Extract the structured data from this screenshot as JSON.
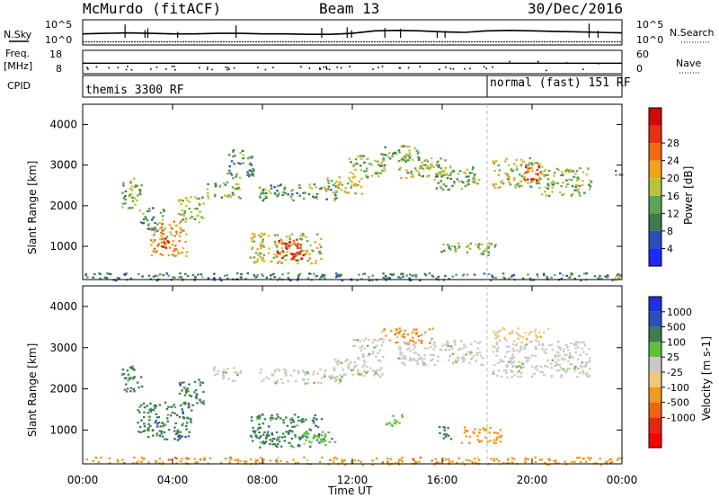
{
  "header": {
    "site": "McMurdo (fitACF)",
    "beam": "Beam 13",
    "date": "30/Dec/2016"
  },
  "colors": {
    "power_scale": [
      "#1a2cff",
      "#2a4fb8",
      "#3e7a4a",
      "#5aa55a",
      "#b6c43a",
      "#f0a21a",
      "#f06a14",
      "#e63214",
      "#d20a0a"
    ],
    "velocity_scale": [
      "#2030e0",
      "#2a4fb8",
      "#3e7d52",
      "#5cc23a",
      "#c8c8c8",
      "#f0c878",
      "#f09a1e",
      "#ee6414",
      "#e02a10",
      "#ff0000"
    ]
  },
  "chart_data": [
    {
      "type": "line",
      "name": "noise-panel",
      "left_labels": [
        "N.Sky",
        "10^5",
        "10^0"
      ],
      "right_labels": [
        "N.Search",
        "10^5",
        "10^0"
      ],
      "left_ticks": [
        "10^5",
        "10^0"
      ],
      "right_ticks": [
        "10^5",
        "10^0"
      ],
      "x": [
        0,
        1,
        2,
        3,
        4,
        5,
        6,
        7,
        8,
        9,
        10,
        11,
        12,
        13,
        14,
        15,
        16,
        17,
        18,
        19,
        20,
        21,
        22,
        23,
        24
      ],
      "series": [
        {
          "values": [
            2.2,
            2.3,
            2.4,
            2.3,
            2.2,
            2.2,
            2.3,
            2.3,
            2.2,
            2.2,
            2.1,
            2.1,
            2.3,
            2.8,
            2.9,
            2.8,
            2.6,
            2.5,
            2.8,
            2.9,
            2.8,
            2.7,
            2.6,
            2.5,
            2.4
          ]
        },
        {
          "values": [
            0.6,
            0.6,
            0.6,
            0.6,
            0.6,
            0.6,
            0.6,
            0.6,
            0.6,
            0.6,
            0.6,
            0.6,
            0.6,
            0.6,
            0.6,
            0.6,
            0.6,
            0.6,
            0.6,
            0.6,
            0.6,
            0.6,
            0.6,
            0.6,
            0.6
          ]
        }
      ],
      "ylim": [
        0,
        5
      ]
    },
    {
      "type": "scatter",
      "name": "frequency-panel",
      "left_labels": [
        "Freq.",
        "[MHz]",
        "CPID"
      ],
      "right_labels": [
        "Nave"
      ],
      "left_ticks": [
        "18",
        "8"
      ],
      "right_ticks": [
        "60",
        "0"
      ],
      "ylim": [
        8,
        18
      ],
      "freq_mhz": 12.5,
      "nave_fast_from_hour": 18
    },
    {
      "type": "table",
      "name": "cpid-bar",
      "segments": [
        {
          "from_hour": 0,
          "label": "themis 3300 RF"
        },
        {
          "from_hour": 18,
          "label": "normal (fast) 151 RF"
        }
      ]
    },
    {
      "type": "heatmap",
      "name": "power-panel",
      "ylabel": "Slant Range [km]",
      "yticks": [
        "1000",
        "2000",
        "3000",
        "4000"
      ],
      "ylim": [
        180,
        4500
      ],
      "xlim": [
        0,
        24
      ],
      "colorbar_label": "Power [dB]",
      "colorbar_ticks": [
        "4",
        "8",
        "12",
        "16",
        "20",
        "24",
        "28"
      ],
      "zlim": [
        0,
        30
      ],
      "regions": [
        {
          "t0": 1.7,
          "t1": 2.6,
          "r0": 1950,
          "r1": 2600,
          "v": 12
        },
        {
          "t0": 2.0,
          "t1": 2.4,
          "r0": 2400,
          "r1": 2700,
          "v": 17
        },
        {
          "t0": 2.5,
          "t1": 3.6,
          "r0": 1400,
          "r1": 2000,
          "v": 10
        },
        {
          "t0": 3.0,
          "t1": 4.6,
          "r0": 780,
          "r1": 1650,
          "v": 18
        },
        {
          "t0": 3.4,
          "t1": 4.0,
          "r0": 950,
          "r1": 1350,
          "v": 24
        },
        {
          "t0": 4.2,
          "t1": 5.4,
          "r0": 1600,
          "r1": 2250,
          "v": 14
        },
        {
          "t0": 5.5,
          "t1": 7.0,
          "r0": 2200,
          "r1": 2600,
          "v": 12
        },
        {
          "t0": 6.4,
          "t1": 7.6,
          "r0": 2700,
          "r1": 3400,
          "v": 10
        },
        {
          "t0": 7.4,
          "t1": 10.6,
          "r0": 600,
          "r1": 1350,
          "v": 16
        },
        {
          "t0": 8.6,
          "t1": 9.8,
          "r0": 700,
          "r1": 1200,
          "v": 25
        },
        {
          "t0": 9.2,
          "t1": 9.9,
          "r0": 620,
          "r1": 850,
          "v": 28
        },
        {
          "t0": 7.8,
          "t1": 11.4,
          "r0": 2150,
          "r1": 2550,
          "v": 11
        },
        {
          "t0": 10.8,
          "t1": 12.4,
          "r0": 2300,
          "r1": 2750,
          "v": 15
        },
        {
          "t0": 11.8,
          "t1": 13.4,
          "r0": 2700,
          "r1": 3300,
          "v": 13
        },
        {
          "t0": 13.2,
          "t1": 15.0,
          "r0": 3100,
          "r1": 3500,
          "v": 12
        },
        {
          "t0": 14.0,
          "t1": 16.2,
          "r0": 2700,
          "r1": 3200,
          "v": 14
        },
        {
          "t0": 15.6,
          "t1": 17.6,
          "r0": 2400,
          "r1": 3000,
          "v": 12
        },
        {
          "t0": 15.8,
          "t1": 18.4,
          "r0": 800,
          "r1": 1100,
          "v": 13
        },
        {
          "t0": 18.2,
          "t1": 20.4,
          "r0": 2450,
          "r1": 3200,
          "v": 15
        },
        {
          "t0": 19.6,
          "t1": 20.4,
          "r0": 2600,
          "r1": 3000,
          "v": 24
        },
        {
          "t0": 20.4,
          "t1": 22.6,
          "r0": 2250,
          "r1": 2950,
          "v": 13
        },
        {
          "t0": 23.6,
          "t1": 24.0,
          "r0": 2750,
          "r1": 2950,
          "v": 10
        },
        {
          "t0": 0.0,
          "t1": 24.0,
          "r0": 180,
          "r1": 360,
          "v": 9
        }
      ]
    },
    {
      "type": "heatmap",
      "name": "velocity-panel",
      "ylabel": "Slant Range [km]",
      "yticks": [
        "1000",
        "2000",
        "3000",
        "4000"
      ],
      "ylim": [
        180,
        4500
      ],
      "xlim": [
        0,
        24
      ],
      "xlabel": "Time UT",
      "xticks": [
        "00:00",
        "04:00",
        "08:00",
        "12:00",
        "16:00",
        "20:00",
        "00:00"
      ],
      "colorbar_label": "Velocity [m s-1]",
      "colorbar_ticks": [
        "1000",
        "500",
        "100",
        "25",
        "-25",
        "-100",
        "-500",
        "-1000"
      ],
      "regions": [
        {
          "t0": 1.7,
          "t1": 2.6,
          "r0": 1950,
          "r1": 2600,
          "c": 2
        },
        {
          "t0": 2.4,
          "t1": 4.8,
          "r0": 780,
          "r1": 1700,
          "c": 2
        },
        {
          "t0": 4.2,
          "t1": 5.4,
          "r0": 1600,
          "r1": 2250,
          "c": 2
        },
        {
          "t0": 5.8,
          "t1": 7.0,
          "r0": 2200,
          "r1": 2550,
          "c": 4
        },
        {
          "t0": 7.4,
          "t1": 10.6,
          "r0": 600,
          "r1": 1400,
          "c": 2
        },
        {
          "t0": 9.6,
          "t1": 11.2,
          "r0": 650,
          "r1": 1000,
          "c": 3
        },
        {
          "t0": 7.8,
          "t1": 11.6,
          "r0": 2150,
          "r1": 2500,
          "c": 4
        },
        {
          "t0": 11.0,
          "t1": 13.4,
          "r0": 2300,
          "r1": 2750,
          "c": 4
        },
        {
          "t0": 12.0,
          "t1": 13.4,
          "r0": 2750,
          "r1": 3250,
          "c": 4
        },
        {
          "t0": 13.2,
          "t1": 15.6,
          "r0": 3100,
          "r1": 3500,
          "c": 6
        },
        {
          "t0": 14.0,
          "t1": 17.8,
          "r0": 2600,
          "r1": 3200,
          "c": 4
        },
        {
          "t0": 13.4,
          "t1": 14.2,
          "r0": 1100,
          "r1": 1400,
          "c": 3
        },
        {
          "t0": 15.6,
          "t1": 16.4,
          "r0": 800,
          "r1": 1100,
          "c": 2
        },
        {
          "t0": 16.8,
          "t1": 18.6,
          "r0": 700,
          "r1": 1100,
          "c": 6
        },
        {
          "t0": 18.2,
          "t1": 22.6,
          "r0": 2300,
          "r1": 3200,
          "c": 4
        },
        {
          "t0": 18.2,
          "t1": 20.8,
          "r0": 3200,
          "r1": 3500,
          "c": 5
        },
        {
          "t0": 0.0,
          "t1": 24.0,
          "r0": 180,
          "r1": 360,
          "c": 6
        }
      ]
    }
  ]
}
